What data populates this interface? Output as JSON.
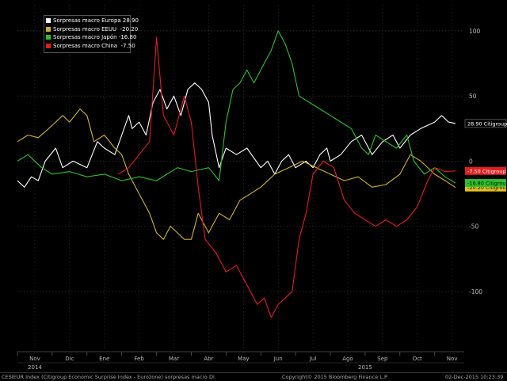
{
  "chart_data": {
    "type": "line",
    "title": "",
    "xlabel": "",
    "ylabel": "",
    "ylim": [
      -145,
      120
    ],
    "grid": true,
    "y_ticks": [
      -100,
      -50,
      0,
      50,
      100
    ],
    "month_labels": [
      "Nov",
      "Dic",
      "Ene",
      "Feb",
      "Mar",
      "Abr",
      "May",
      "Jun",
      "Jul",
      "Ago",
      "Sep",
      "Oct",
      "Nov"
    ],
    "year_labels": [
      {
        "at": 0.5,
        "text": "2014"
      },
      {
        "at": 10,
        "text": "2015"
      }
    ],
    "legend_placement": "top-left",
    "x_unit": "month index (0 = Nov 2014)",
    "series": [
      {
        "name": "Sorpresas macro Europa",
        "last": "28.90",
        "color": "#ffffff",
        "tag": "28.90 Citigroup",
        "tag_bg": "#000000",
        "tag_fg": "#ffffff",
        "points": [
          [
            0,
            -15
          ],
          [
            0.2,
            -20
          ],
          [
            0.4,
            -12
          ],
          [
            0.6,
            -15
          ],
          [
            0.8,
            0
          ],
          [
            1.1,
            10
          ],
          [
            1.3,
            -5
          ],
          [
            1.6,
            0
          ],
          [
            2.0,
            -5
          ],
          [
            2.3,
            15
          ],
          [
            2.5,
            10
          ],
          [
            2.8,
            5
          ],
          [
            3.0,
            20
          ],
          [
            3.2,
            35
          ],
          [
            3.3,
            25
          ],
          [
            3.5,
            30
          ],
          [
            3.7,
            20
          ],
          [
            3.9,
            45
          ],
          [
            4.1,
            55
          ],
          [
            4.3,
            40
          ],
          [
            4.5,
            50
          ],
          [
            4.7,
            35
          ],
          [
            4.9,
            55
          ],
          [
            5.1,
            60
          ],
          [
            5.3,
            55
          ],
          [
            5.5,
            45
          ],
          [
            5.6,
            20
          ],
          [
            5.8,
            -5
          ],
          [
            6.0,
            10
          ],
          [
            6.3,
            5
          ],
          [
            6.6,
            10
          ],
          [
            7.0,
            -5
          ],
          [
            7.2,
            0
          ],
          [
            7.4,
            -10
          ],
          [
            7.6,
            0
          ],
          [
            7.8,
            5
          ],
          [
            8.0,
            -5
          ],
          [
            8.3,
            0
          ],
          [
            8.5,
            -5
          ],
          [
            8.7,
            5
          ],
          [
            8.9,
            10
          ],
          [
            9.0,
            0
          ],
          [
            9.3,
            5
          ],
          [
            9.6,
            15
          ],
          [
            9.9,
            20
          ],
          [
            10.2,
            5
          ],
          [
            10.5,
            15
          ],
          [
            10.8,
            20
          ],
          [
            11.0,
            10
          ],
          [
            11.3,
            20
          ],
          [
            11.6,
            25
          ],
          [
            12.0,
            30
          ],
          [
            12.2,
            35
          ],
          [
            12.4,
            30
          ],
          [
            12.6,
            28.9
          ]
        ]
      },
      {
        "name": "Sorpresas macro EEUU",
        "last": "-20.20",
        "color": "#d0b23a",
        "tag": "-20.20 Citigroup",
        "tag_bg": "#e6c31e",
        "tag_fg": "#000000",
        "points": [
          [
            0,
            15
          ],
          [
            0.3,
            20
          ],
          [
            0.6,
            18
          ],
          [
            0.9,
            25
          ],
          [
            1.1,
            30
          ],
          [
            1.3,
            35
          ],
          [
            1.5,
            30
          ],
          [
            1.8,
            40
          ],
          [
            2.0,
            35
          ],
          [
            2.2,
            15
          ],
          [
            2.5,
            20
          ],
          [
            2.8,
            10
          ],
          [
            3.0,
            5
          ],
          [
            3.2,
            -10
          ],
          [
            3.5,
            -25
          ],
          [
            3.8,
            -40
          ],
          [
            4.0,
            -55
          ],
          [
            4.2,
            -60
          ],
          [
            4.4,
            -50
          ],
          [
            4.6,
            -55
          ],
          [
            4.8,
            -60
          ],
          [
            5.0,
            -60
          ],
          [
            5.2,
            -40
          ],
          [
            5.5,
            -55
          ],
          [
            5.8,
            -40
          ],
          [
            6.1,
            -45
          ],
          [
            6.4,
            -30
          ],
          [
            6.7,
            -25
          ],
          [
            7.0,
            -20
          ],
          [
            7.4,
            -10
          ],
          [
            7.8,
            -5
          ],
          [
            8.2,
            0
          ],
          [
            8.6,
            -5
          ],
          [
            9.0,
            -10
          ],
          [
            9.4,
            -15
          ],
          [
            9.8,
            -12
          ],
          [
            10.2,
            -20
          ],
          [
            10.6,
            -18
          ],
          [
            11.0,
            -10
          ],
          [
            11.3,
            5
          ],
          [
            11.6,
            0
          ],
          [
            12.0,
            -10
          ],
          [
            12.3,
            -15
          ],
          [
            12.6,
            -20.2
          ]
        ]
      },
      {
        "name": "Sorpresas macro Japón",
        "last": "-16.80",
        "color": "#2fc02f",
        "tag": "-16.80 Citigroup",
        "tag_bg": "#2fc02f",
        "tag_fg": "#000000",
        "points": [
          [
            0,
            0
          ],
          [
            0.3,
            5
          ],
          [
            0.7,
            -5
          ],
          [
            1.0,
            -10
          ],
          [
            1.5,
            -8
          ],
          [
            2.0,
            -12
          ],
          [
            2.5,
            -10
          ],
          [
            3.0,
            -15
          ],
          [
            3.5,
            -12
          ],
          [
            4.0,
            -15
          ],
          [
            4.3,
            -10
          ],
          [
            4.6,
            -5
          ],
          [
            5.0,
            -8
          ],
          [
            5.5,
            -5
          ],
          [
            5.8,
            -15
          ],
          [
            6.0,
            30
          ],
          [
            6.2,
            55
          ],
          [
            6.4,
            60
          ],
          [
            6.6,
            70
          ],
          [
            6.8,
            60
          ],
          [
            7.0,
            70
          ],
          [
            7.2,
            80
          ],
          [
            7.3,
            85
          ],
          [
            7.5,
            100
          ],
          [
            7.7,
            90
          ],
          [
            7.9,
            75
          ],
          [
            8.1,
            50
          ],
          [
            8.4,
            45
          ],
          [
            8.7,
            40
          ],
          [
            9.0,
            35
          ],
          [
            9.3,
            30
          ],
          [
            9.6,
            25
          ],
          [
            9.9,
            10
          ],
          [
            10.1,
            5
          ],
          [
            10.3,
            20
          ],
          [
            10.6,
            15
          ],
          [
            10.9,
            10
          ],
          [
            11.2,
            20
          ],
          [
            11.4,
            0
          ],
          [
            11.7,
            -10
          ],
          [
            12.0,
            -5
          ],
          [
            12.3,
            -12
          ],
          [
            12.6,
            -16.8
          ]
        ]
      },
      {
        "name": "Sorpresas macro China",
        "last": "-7.50",
        "color": "#e01f1f",
        "tag": "-7.50 Citigroup",
        "tag_bg": "#e01f1f",
        "tag_fg": "#ffffff",
        "points": [
          [
            2.9,
            -10
          ],
          [
            3.2,
            -5
          ],
          [
            3.5,
            5
          ],
          [
            3.8,
            15
          ],
          [
            4.0,
            95
          ],
          [
            4.2,
            35
          ],
          [
            4.5,
            20
          ],
          [
            4.8,
            50
          ],
          [
            5.0,
            30
          ],
          [
            5.2,
            -20
          ],
          [
            5.4,
            -60
          ],
          [
            5.7,
            -70
          ],
          [
            6.0,
            -85
          ],
          [
            6.3,
            -80
          ],
          [
            6.6,
            -95
          ],
          [
            6.9,
            -110
          ],
          [
            7.1,
            -105
          ],
          [
            7.3,
            -120
          ],
          [
            7.5,
            -110
          ],
          [
            7.7,
            -105
          ],
          [
            7.9,
            -100
          ],
          [
            8.1,
            -60
          ],
          [
            8.3,
            -40
          ],
          [
            8.5,
            -10
          ],
          [
            8.8,
            0
          ],
          [
            9.1,
            -5
          ],
          [
            9.4,
            -30
          ],
          [
            9.7,
            -40
          ],
          [
            10.0,
            -45
          ],
          [
            10.3,
            -50
          ],
          [
            10.6,
            -45
          ],
          [
            10.9,
            -50
          ],
          [
            11.2,
            -45
          ],
          [
            11.5,
            -35
          ],
          [
            11.8,
            -15
          ],
          [
            12.0,
            -5
          ],
          [
            12.3,
            -8
          ],
          [
            12.6,
            -7.5
          ]
        ]
      }
    ]
  },
  "footer": {
    "left": "CESIEUR Index (Citigroup Economic Surprise Index - Eurozone) sorpresas macro  Di",
    "center": "Copyright© 2015 Bloomberg Finance L.P.",
    "right": "02-Dec-2015 10:23:39"
  },
  "colors": {
    "background": "#000000",
    "grid": "#333333",
    "axis_text": "#bbbbbb"
  }
}
